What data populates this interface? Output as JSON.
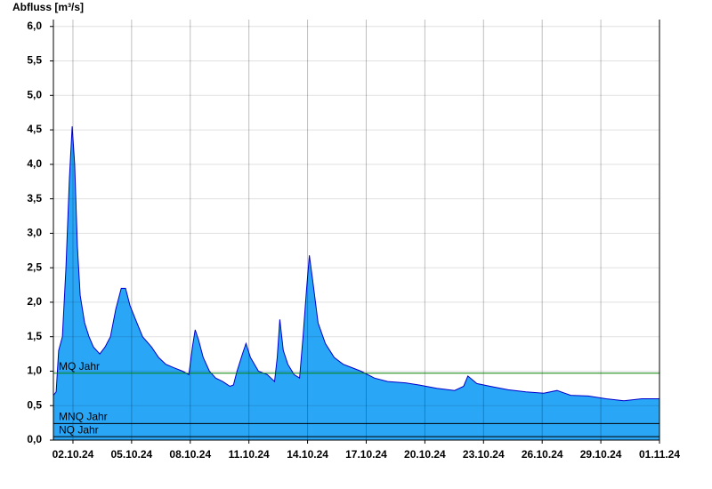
{
  "chart_data": {
    "type": "area",
    "y_label": "Abfluss [m³/s]",
    "x": [
      1.0,
      1.14,
      1.27,
      1.46,
      1.64,
      1.82,
      1.96,
      2.09,
      2.23,
      2.37,
      2.6,
      2.82,
      3.05,
      3.37,
      3.64,
      3.92,
      4.19,
      4.47,
      4.69,
      4.92,
      5.2,
      5.56,
      6.02,
      6.38,
      6.75,
      7.16,
      7.61,
      7.93,
      8.11,
      8.25,
      8.43,
      8.66,
      8.98,
      9.3,
      9.66,
      10.03,
      10.21,
      10.39,
      10.67,
      10.85,
      11.08,
      11.49,
      11.94,
      12.31,
      12.45,
      12.58,
      12.76,
      12.99,
      13.31,
      13.59,
      13.77,
      13.95,
      14.09,
      14.27,
      14.54,
      14.91,
      15.36,
      15.82,
      16.28,
      16.73,
      17.42,
      18.1,
      19.01,
      19.7,
      20.61,
      21.52,
      21.98,
      22.2,
      22.66,
      23.34,
      24.26,
      25.17,
      26.08,
      26.76,
      27.46,
      28.36,
      29.27,
      30.18,
      31.1,
      32.0
    ],
    "series": [
      {
        "color": "#2aa6f6",
        "line_color": "#0000cc",
        "values": [
          0.65,
          0.7,
          1.3,
          1.5,
          2.5,
          3.8,
          4.55,
          4.0,
          2.8,
          2.1,
          1.7,
          1.5,
          1.35,
          1.25,
          1.35,
          1.5,
          1.9,
          2.2,
          2.2,
          1.95,
          1.75,
          1.5,
          1.35,
          1.2,
          1.1,
          1.05,
          1.0,
          0.95,
          1.35,
          1.6,
          1.45,
          1.2,
          1.0,
          0.9,
          0.85,
          0.78,
          0.8,
          1.0,
          1.25,
          1.4,
          1.2,
          1.0,
          0.95,
          0.85,
          1.2,
          1.75,
          1.3,
          1.1,
          0.95,
          0.9,
          1.5,
          2.2,
          2.68,
          2.3,
          1.7,
          1.4,
          1.2,
          1.1,
          1.05,
          1.0,
          0.9,
          0.85,
          0.83,
          0.8,
          0.75,
          0.72,
          0.78,
          0.93,
          0.82,
          0.78,
          0.73,
          0.7,
          0.68,
          0.72,
          0.65,
          0.64,
          0.6,
          0.57,
          0.6,
          0.6
        ]
      }
    ],
    "reference_lines": [
      {
        "name": "MQ Jahr",
        "value": 0.97,
        "color": "#008000"
      },
      {
        "name": "MNQ Jahr",
        "value": 0.24,
        "color": "#000000"
      },
      {
        "name": "NQ Jahr",
        "value": 0.05,
        "color": "#000000"
      }
    ],
    "xlim": [
      1,
      32
    ],
    "xticks": [
      {
        "value": 2,
        "label": "02.10.24"
      },
      {
        "value": 5,
        "label": "05.10.24"
      },
      {
        "value": 8,
        "label": "08.10.24"
      },
      {
        "value": 11,
        "label": "11.10.24"
      },
      {
        "value": 14,
        "label": "14.10.24"
      },
      {
        "value": 17,
        "label": "17.10.24"
      },
      {
        "value": 20,
        "label": "20.10.24"
      },
      {
        "value": 23,
        "label": "23.10.24"
      },
      {
        "value": 26,
        "label": "26.10.24"
      },
      {
        "value": 29,
        "label": "29.10.24"
      },
      {
        "value": 32,
        "label": "01.11.24"
      }
    ],
    "ylim": [
      0,
      6.1
    ],
    "yticks": [
      {
        "value": 0,
        "label": "0,0"
      },
      {
        "value": 0.5,
        "label": "0,5"
      },
      {
        "value": 1,
        "label": "1,0"
      },
      {
        "value": 1.5,
        "label": "1,5"
      },
      {
        "value": 2,
        "label": "2,0"
      },
      {
        "value": 2.5,
        "label": "2,5"
      },
      {
        "value": 3,
        "label": "3,0"
      },
      {
        "value": 3.5,
        "label": "3,5"
      },
      {
        "value": 4,
        "label": "4,0"
      },
      {
        "value": 4.5,
        "label": "4,5"
      },
      {
        "value": 5,
        "label": "5,0"
      },
      {
        "value": 5.5,
        "label": "5,5"
      },
      {
        "value": 6,
        "label": "6,0"
      }
    ],
    "grid": true
  }
}
